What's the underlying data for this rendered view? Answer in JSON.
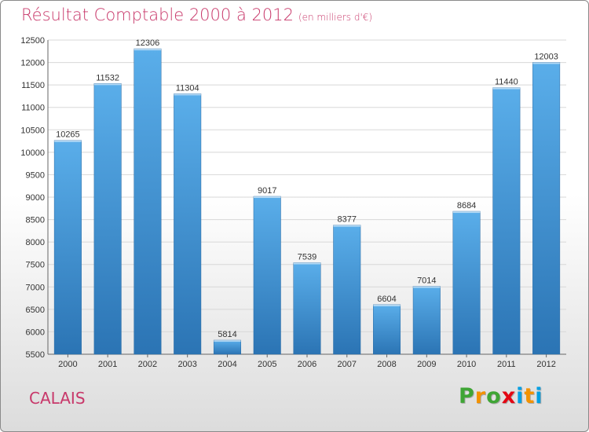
{
  "header": {
    "title": "Résultat Comptable 2000 à 2012",
    "subtitle": "(en milliers d'€)"
  },
  "footer": {
    "city": "CALAIS",
    "logo_letters": [
      "P",
      "r",
      "o",
      "x",
      "i",
      "t",
      "i"
    ]
  },
  "colors": {
    "title": "#c8386a",
    "bar_top": "#5aaeea",
    "bar_bottom": "#2b74b4",
    "logo": [
      "#3fa535",
      "#f39200",
      "#3fa535",
      "#e30613",
      "#009fe3",
      "#f39200",
      "#009fe3"
    ]
  },
  "chart_data": {
    "type": "bar",
    "title": "Résultat Comptable 2000 à 2012",
    "xlabel": "",
    "ylabel": "",
    "ylim": [
      5500,
      12500
    ],
    "yticks": [
      5500,
      6000,
      6500,
      7000,
      7500,
      8000,
      8500,
      9000,
      9500,
      10000,
      10500,
      11000,
      11500,
      12000,
      12500
    ],
    "categories": [
      "2000",
      "2001",
      "2002",
      "2003",
      "2004",
      "2005",
      "2006",
      "2007",
      "2008",
      "2009",
      "2010",
      "2011",
      "2012"
    ],
    "values": [
      10265,
      11532,
      12306,
      11304,
      5814,
      9017,
      7539,
      8377,
      6604,
      7014,
      8684,
      11440,
      12003
    ],
    "grid": true,
    "legend": "none"
  }
}
